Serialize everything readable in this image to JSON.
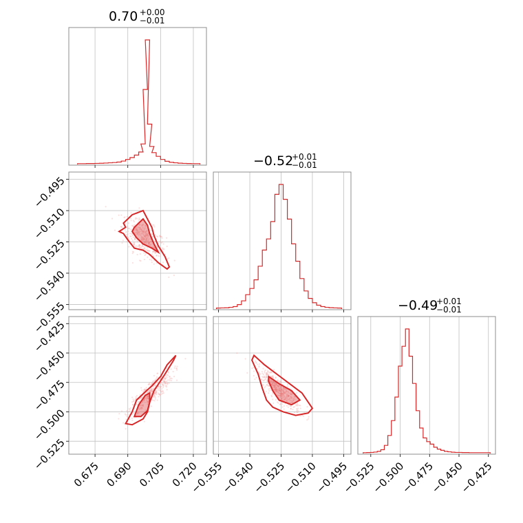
{
  "chart_data": {
    "type": "corner",
    "parameters": [
      {
        "title": {
          "median": "0.70",
          "plus": "+0.00",
          "minus": "−0.01"
        },
        "range": [
          0.663,
          0.726
        ],
        "ticks": [
          "0.675",
          "0.690",
          "0.705",
          "0.720"
        ],
        "tick_values": [
          0.675,
          0.69,
          0.705,
          0.72
        ],
        "hist_x": [
          0.668,
          0.67,
          0.672,
          0.674,
          0.676,
          0.678,
          0.68,
          0.682,
          0.684,
          0.686,
          0.688,
          0.69,
          0.692,
          0.694,
          0.696,
          0.697,
          0.698,
          0.699,
          0.7,
          0.701,
          0.702,
          0.704,
          0.706,
          0.708,
          0.71,
          0.712,
          0.714,
          0.716,
          0.718,
          0.72,
          0.722
        ],
        "hist_counts": [
          1,
          1,
          2,
          2,
          3,
          4,
          6,
          8,
          10,
          14,
          22,
          35,
          50,
          70,
          95,
          160,
          600,
          1000,
          320,
          140,
          90,
          60,
          35,
          20,
          12,
          8,
          5,
          3,
          2,
          1,
          1
        ]
      },
      {
        "title": {
          "median": "−0.52",
          "plus": "+0.01",
          "minus": "−0.01"
        },
        "range": [
          0.5575,
          0.4915
        ],
        "range_signed": [
          -0.5575,
          -0.4915
        ],
        "ticks": [
          "−0.555",
          "−0.540",
          "−0.525",
          "−0.510",
          "−0.495"
        ],
        "tick_values": [
          -0.555,
          -0.54,
          -0.525,
          -0.51,
          -0.495
        ],
        "hist_x": [
          -0.555,
          -0.553,
          -0.551,
          -0.549,
          -0.547,
          -0.545,
          -0.543,
          -0.541,
          -0.539,
          -0.537,
          -0.535,
          -0.533,
          -0.531,
          -0.529,
          -0.527,
          -0.525,
          -0.523,
          -0.521,
          -0.519,
          -0.517,
          -0.515,
          -0.513,
          -0.511,
          -0.509,
          -0.507,
          -0.505,
          -0.503,
          -0.501,
          -0.499,
          -0.497
        ],
        "hist_counts": [
          2,
          3,
          4,
          8,
          14,
          30,
          60,
          110,
          160,
          230,
          340,
          470,
          560,
          700,
          920,
          1000,
          880,
          720,
          520,
          380,
          240,
          140,
          80,
          45,
          25,
          14,
          8,
          5,
          3,
          2
        ]
      },
      {
        "title": {
          "median": "−0.49",
          "plus": "+0.01",
          "minus": "−0.01"
        },
        "range": [
          -0.536,
          -0.419
        ],
        "ticks": [
          "−0.525",
          "−0.500",
          "−0.475",
          "−0.450",
          "−0.425"
        ],
        "tick_values": [
          -0.525,
          -0.5,
          -0.475,
          -0.45,
          -0.425
        ],
        "hist_x": [
          -0.53,
          -0.527,
          -0.524,
          -0.521,
          -0.518,
          -0.515,
          -0.512,
          -0.509,
          -0.506,
          -0.503,
          -0.5,
          -0.497,
          -0.494,
          -0.491,
          -0.488,
          -0.485,
          -0.482,
          -0.479,
          -0.476,
          -0.473,
          -0.47,
          -0.467,
          -0.464,
          -0.461,
          -0.458,
          -0.455,
          -0.452,
          -0.449,
          -0.446,
          -0.443,
          -0.44,
          -0.437,
          -0.434,
          -0.431,
          -0.428,
          -0.425
        ],
        "hist_counts": [
          1,
          2,
          3,
          6,
          12,
          25,
          60,
          140,
          260,
          450,
          700,
          860,
          1000,
          780,
          560,
          340,
          200,
          120,
          90,
          70,
          45,
          30,
          20,
          12,
          8,
          5,
          3,
          3,
          2,
          2,
          1,
          1,
          1,
          1,
          1,
          1
        ]
      }
    ],
    "color": "#d62728",
    "grid": true,
    "layout": "lower-triangle 3x3"
  }
}
